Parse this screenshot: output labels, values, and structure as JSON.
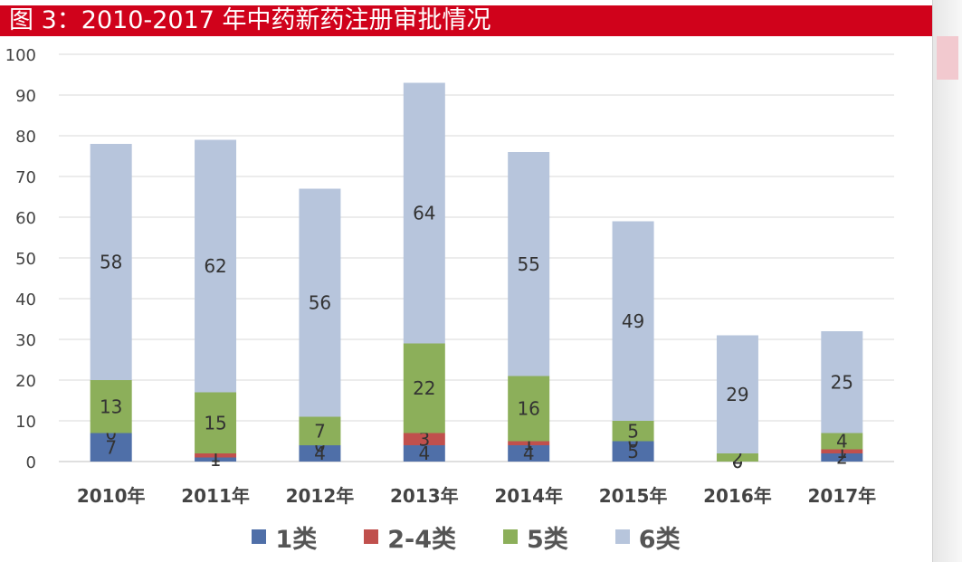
{
  "title": "图 3：2010-2017 年中药新药注册审批情况",
  "chart_data": {
    "type": "bar",
    "stacked": true,
    "categories": [
      "2010年",
      "2011年",
      "2012年",
      "2013年",
      "2014年",
      "2015年",
      "2016年",
      "2017年"
    ],
    "series": [
      {
        "name": "1类",
        "color": "#4f6fa8",
        "values": [
          7,
          1,
          4,
          4,
          4,
          5,
          0,
          2
        ]
      },
      {
        "name": "2-4类",
        "color": "#c0504d",
        "values": [
          0,
          1,
          0,
          3,
          1,
          0,
          0,
          1
        ]
      },
      {
        "name": "5类",
        "color": "#8caf5a",
        "values": [
          13,
          15,
          7,
          22,
          16,
          5,
          2,
          4
        ]
      },
      {
        "name": "6类",
        "color": "#b7c5dc",
        "values": [
          58,
          62,
          56,
          64,
          55,
          49,
          29,
          25
        ]
      }
    ],
    "ylim": [
      0,
      100
    ],
    "yticks": [
      0,
      10,
      20,
      30,
      40,
      50,
      60,
      70,
      80,
      90,
      100
    ],
    "grid": true,
    "legend": "bottom",
    "data_labels": true
  }
}
